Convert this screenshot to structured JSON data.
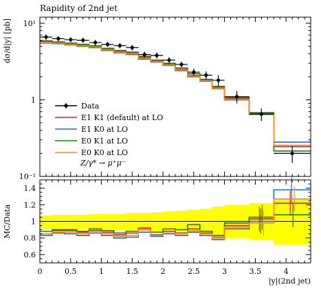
{
  "chart_data": [
    {
      "type": "line",
      "panel": "main",
      "title": "Rapidity of 2nd jet",
      "ylabel": "dσ/d|y| [pb]",
      "xlabel": "",
      "yscale": "log",
      "ylim": [
        0.1,
        12
      ],
      "xlim": [
        0,
        4.4
      ],
      "y_ticks": [
        {
          "value": 0.1,
          "label": "10⁻¹"
        },
        {
          "value": 1,
          "label": "1"
        },
        {
          "value": 10,
          "label": "10¹"
        }
      ],
      "legend_position": "lower-left",
      "bin_edges": [
        0,
        0.2,
        0.4,
        0.6,
        0.8,
        1.0,
        1.2,
        1.4,
        1.6,
        1.8,
        2.0,
        2.2,
        2.4,
        2.6,
        2.8,
        3.0,
        3.4,
        3.8,
        4.4
      ],
      "series": [
        {
          "name": "Data",
          "kind": "points",
          "color": "#000000",
          "values": [
            6.6,
            6.3,
            6.1,
            6.0,
            5.6,
            5.3,
            5.1,
            4.8,
            3.9,
            3.8,
            3.3,
            2.9,
            2.3,
            2.1,
            1.8,
            1.1,
            0.65,
            0.2
          ],
          "errors": [
            0.55,
            0.5,
            0.45,
            0.45,
            0.45,
            0.4,
            0.4,
            0.4,
            0.35,
            0.35,
            0.3,
            0.25,
            0.25,
            0.25,
            0.3,
            0.2,
            0.12,
            0.05
          ]
        },
        {
          "name": "E1 K1 (default) at LO",
          "kind": "hist",
          "color": "#e41a1c",
          "values": [
            5.8,
            5.6,
            5.4,
            5.2,
            5.0,
            4.6,
            4.3,
            4.1,
            3.6,
            3.2,
            2.9,
            2.5,
            2.1,
            1.8,
            1.45,
            1.05,
            0.67,
            0.245
          ]
        },
        {
          "name": "E1 K0 at LO",
          "kind": "hist",
          "color": "#2166ce",
          "values": [
            5.5,
            5.4,
            5.2,
            5.0,
            4.8,
            4.4,
            4.1,
            3.9,
            3.4,
            3.1,
            2.8,
            2.4,
            2.0,
            1.75,
            1.4,
            1.0,
            0.65,
            0.28
          ]
        },
        {
          "name": "E0 K1 at LO",
          "kind": "hist",
          "color": "#1a7f1a",
          "values": [
            5.9,
            5.7,
            5.5,
            5.3,
            5.1,
            4.7,
            4.4,
            4.2,
            3.7,
            3.3,
            3.0,
            2.6,
            2.2,
            1.85,
            1.5,
            1.08,
            0.68,
            0.215
          ]
        },
        {
          "name": "E0 K0 at LO",
          "kind": "hist",
          "color": "#ff8c1a",
          "values": [
            5.6,
            5.5,
            5.3,
            5.1,
            4.9,
            4.5,
            4.2,
            4.0,
            3.5,
            3.15,
            2.85,
            2.45,
            2.05,
            1.78,
            1.42,
            1.02,
            0.64,
            0.255
          ]
        }
      ]
    },
    {
      "type": "line",
      "panel": "ratio",
      "ylabel": "MC/Data",
      "xlabel": "|y|(2nd jet)",
      "ylim": [
        0.5,
        1.5
      ],
      "xlim": [
        0,
        4.4
      ],
      "x_ticks": [
        0,
        0.5,
        1,
        1.5,
        2,
        2.5,
        3,
        3.5,
        4
      ],
      "y_ticks": [
        0.6,
        0.8,
        1,
        1.2,
        1.4
      ],
      "band": {
        "color": "#ffff00",
        "lower": [
          0.91,
          0.91,
          0.9,
          0.9,
          0.9,
          0.9,
          0.9,
          0.89,
          0.89,
          0.88,
          0.88,
          0.87,
          0.86,
          0.85,
          0.82,
          0.8,
          0.78,
          0.72
        ],
        "upper": [
          1.07,
          1.08,
          1.08,
          1.08,
          1.09,
          1.09,
          1.09,
          1.1,
          1.1,
          1.11,
          1.12,
          1.13,
          1.14,
          1.15,
          1.18,
          1.2,
          1.22,
          1.27
        ]
      },
      "series": [
        {
          "name": "E1 K1 (default) at LO",
          "color": "#e41a1c",
          "values": [
            0.85,
            0.89,
            0.89,
            0.87,
            0.89,
            0.87,
            0.84,
            0.86,
            0.92,
            0.84,
            0.88,
            0.86,
            0.91,
            0.86,
            0.81,
            0.95,
            1.03,
            1.22
          ]
        },
        {
          "name": "E1 K0 at LO",
          "color": "#2166ce",
          "values": [
            0.83,
            0.86,
            0.85,
            0.83,
            0.86,
            0.83,
            0.8,
            0.81,
            0.87,
            0.82,
            0.85,
            0.83,
            0.87,
            0.83,
            0.78,
            0.91,
            1.0,
            1.38
          ]
        },
        {
          "name": "E0 K1 at LO",
          "color": "#1a7f1a",
          "values": [
            0.88,
            0.9,
            0.9,
            0.88,
            0.91,
            0.89,
            0.86,
            0.88,
            0.9,
            0.87,
            0.91,
            0.9,
            0.96,
            0.88,
            0.83,
            0.98,
            1.05,
            1.08
          ]
        },
        {
          "name": "E0 K0 at LO",
          "color": "#ff8c1a",
          "values": [
            0.85,
            0.87,
            0.87,
            0.85,
            0.88,
            0.85,
            0.82,
            0.83,
            0.9,
            0.83,
            0.86,
            0.84,
            0.89,
            0.85,
            0.79,
            0.93,
            0.98,
            1.27
          ]
        }
      ],
      "errors": [
        0,
        0,
        0,
        0,
        0,
        0,
        0,
        0,
        0,
        0,
        0,
        0,
        0,
        0,
        0,
        0,
        0.15,
        0.15
      ]
    }
  ],
  "legend": {
    "entries": [
      "Data",
      "E1 K1 (default) at LO",
      "E1 K0 at LO",
      "E0 K1 at LO",
      "E0 K0 at LO"
    ],
    "process": "Z/γ* → μ⁺μ⁻"
  }
}
